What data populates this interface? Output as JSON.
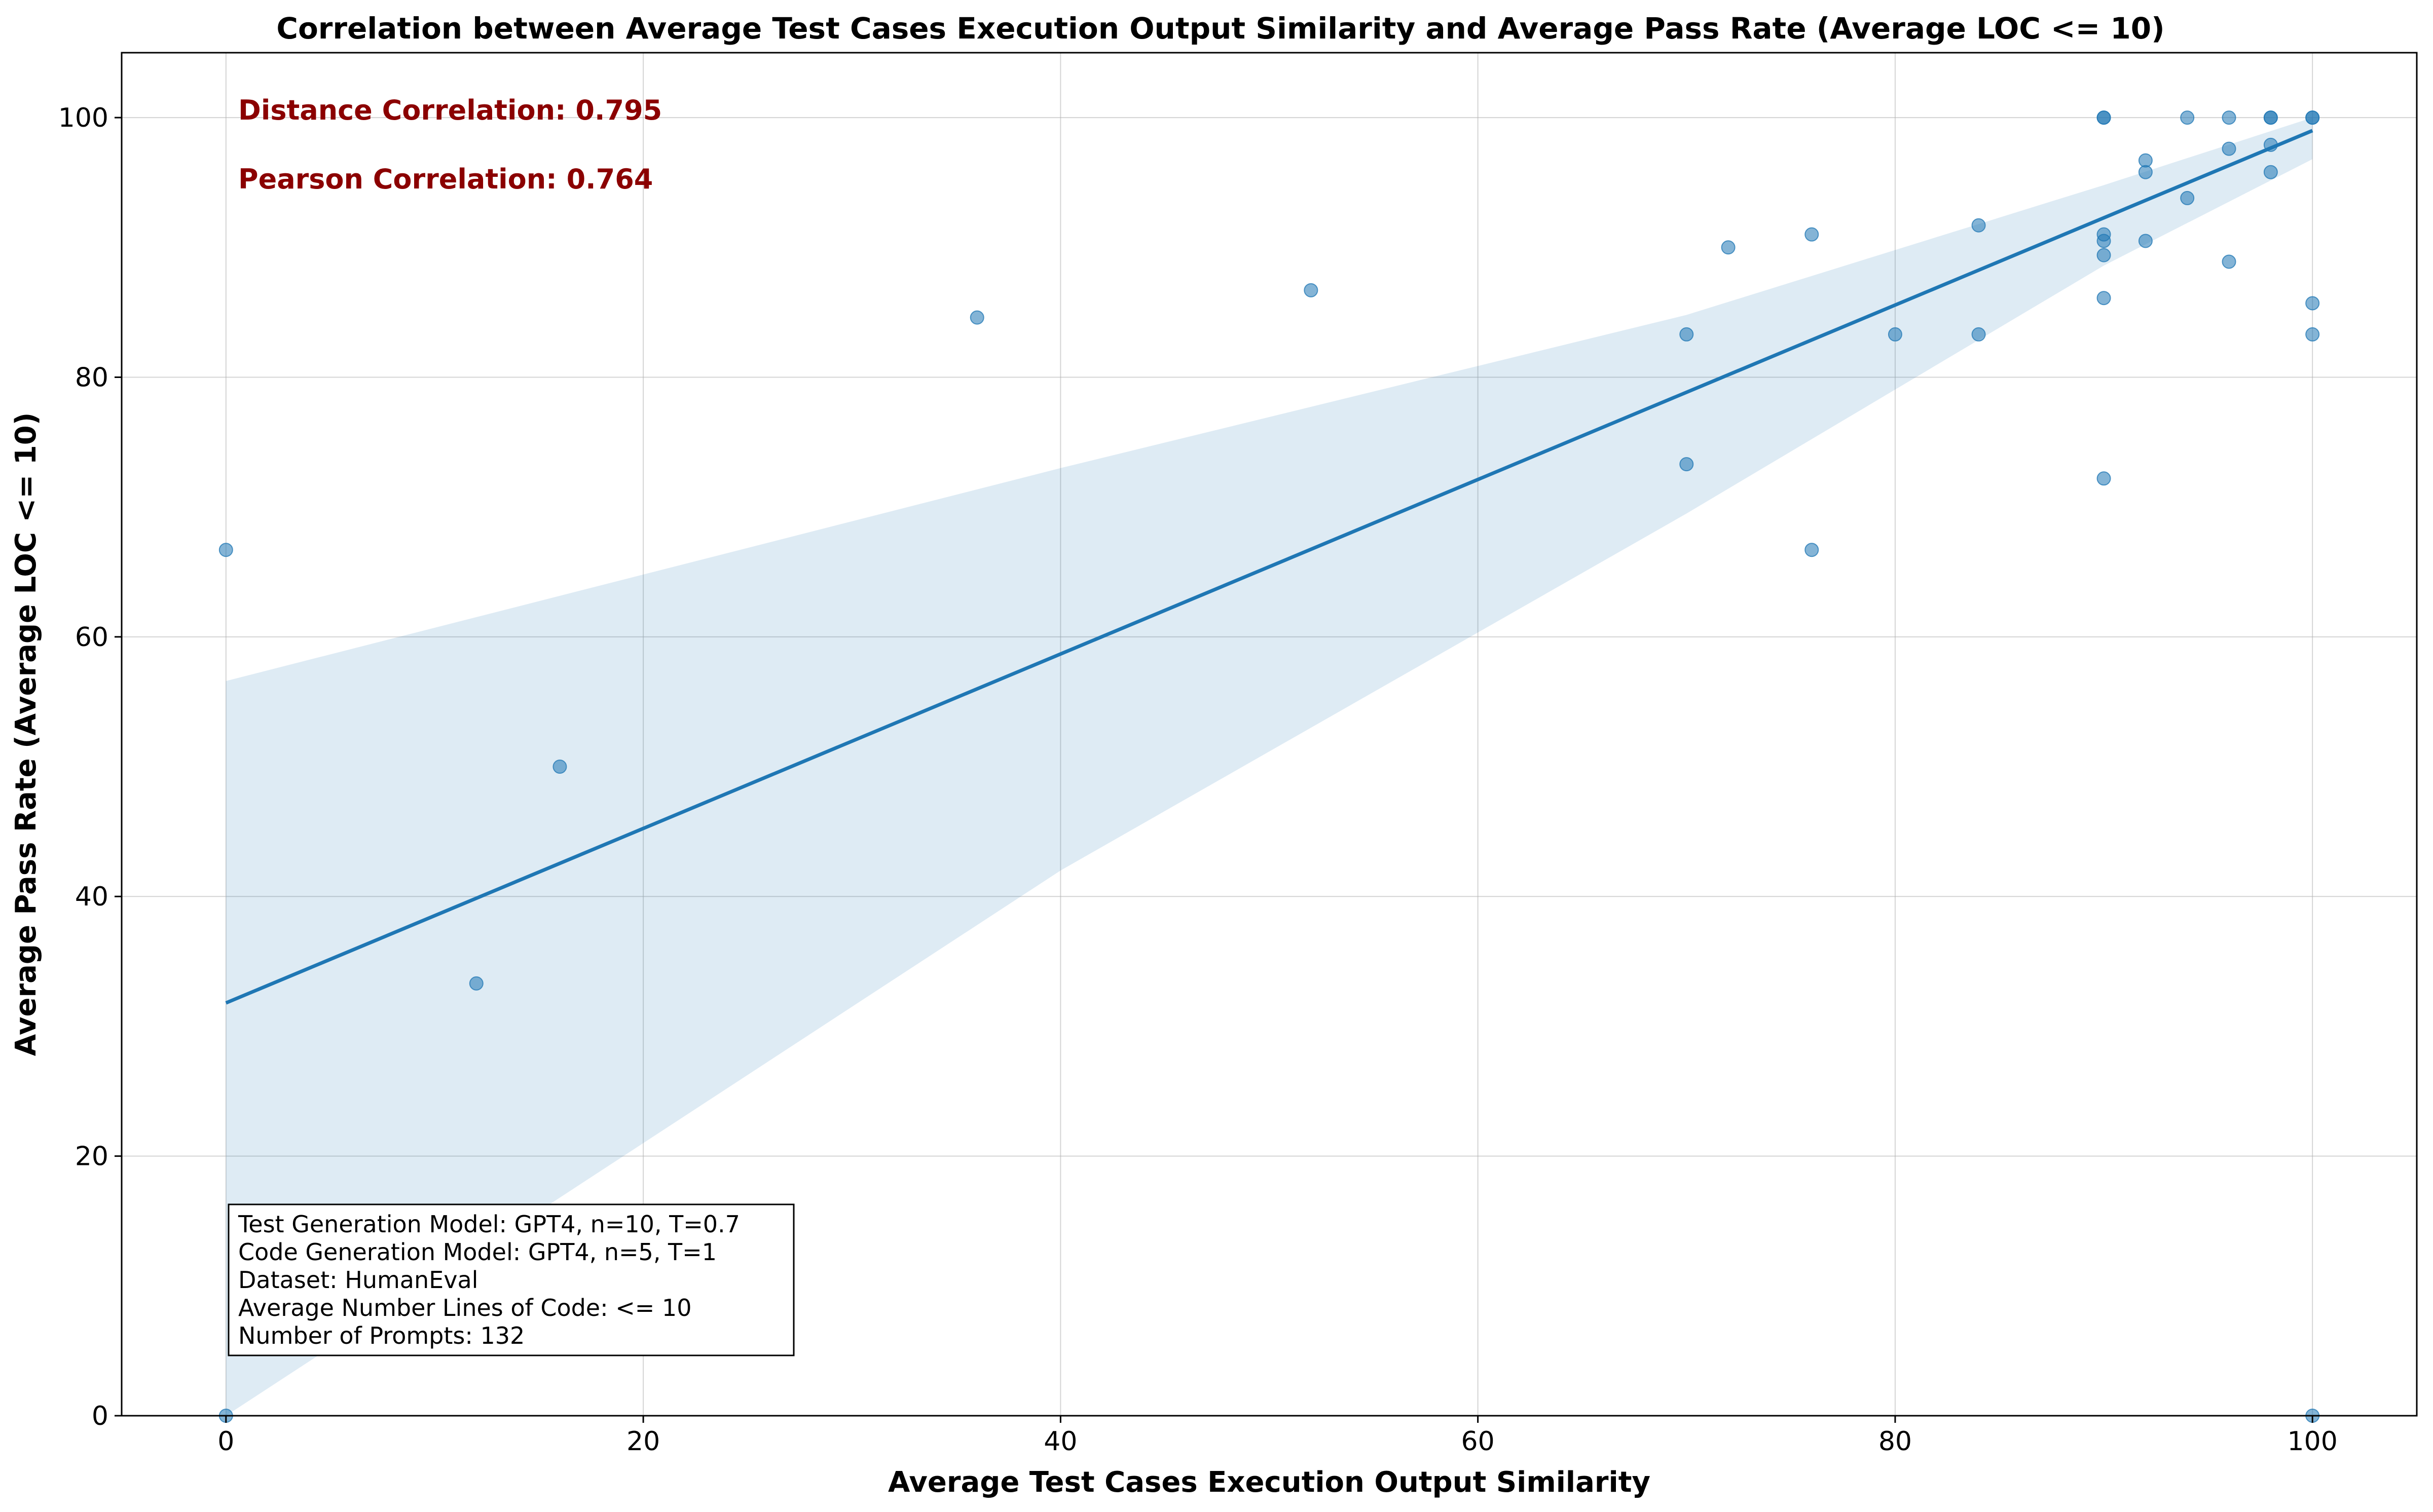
{
  "chart_data": {
    "type": "scatter",
    "title": "Correlation between Average Test Cases Execution Output Similarity and Average Pass Rate (Average LOC <= 10)",
    "xlabel": "Average Test Cases Execution Output Similarity",
    "ylabel": "Average Pass Rate (Average LOC <= 10)",
    "xlim": [
      -5,
      105
    ],
    "ylim": [
      0,
      105
    ],
    "xticks": [
      0,
      20,
      40,
      60,
      80,
      100
    ],
    "yticks": [
      0,
      20,
      40,
      60,
      80,
      100
    ],
    "grid": true,
    "colors": {
      "points": "#1f77b4",
      "line": "#1f77b4",
      "band": "#1f77b4",
      "annotation": "#8b0000"
    },
    "points": [
      [
        0,
        66.7
      ],
      [
        0,
        0
      ],
      [
        12,
        33.3
      ],
      [
        16,
        50
      ],
      [
        36,
        84.6
      ],
      [
        52,
        86.7
      ],
      [
        70,
        83.3
      ],
      [
        70,
        73.3
      ],
      [
        72,
        90
      ],
      [
        76,
        91
      ],
      [
        76,
        66.7
      ],
      [
        80,
        83.3
      ],
      [
        84,
        91.7
      ],
      [
        84,
        83.3
      ],
      [
        90,
        100
      ],
      [
        90,
        100
      ],
      [
        90,
        91
      ],
      [
        90,
        90.5
      ],
      [
        90,
        89.4
      ],
      [
        90,
        86.1
      ],
      [
        90,
        72.2
      ],
      [
        92,
        96.7
      ],
      [
        92,
        95.8
      ],
      [
        92,
        90.5
      ],
      [
        94,
        100
      ],
      [
        94,
        93.8
      ],
      [
        96,
        100
      ],
      [
        96,
        97.6
      ],
      [
        96,
        88.9
      ],
      [
        98,
        100
      ],
      [
        98,
        100
      ],
      [
        98,
        97.9
      ],
      [
        98,
        95.8
      ],
      [
        100,
        100
      ],
      [
        100,
        100
      ],
      [
        100,
        85.7
      ],
      [
        100,
        83.3
      ],
      [
        100,
        0
      ]
    ],
    "regression": {
      "x": [
        0,
        100
      ],
      "y": [
        31.8,
        99
      ]
    },
    "confidence_band": {
      "upper": [
        [
          0,
          56.6
        ],
        [
          40,
          73
        ],
        [
          70,
          84.8
        ],
        [
          90,
          94.8
        ],
        [
          100,
          100
        ]
      ],
      "lower": [
        [
          0,
          0
        ],
        [
          40,
          42
        ],
        [
          70,
          69.5
        ],
        [
          90,
          88.6
        ],
        [
          100,
          96.8
        ]
      ]
    }
  },
  "annotations": {
    "distance_correlation": "Distance Correlation: 0.795",
    "pearson_correlation": "Pearson Correlation: 0.764"
  },
  "info_box": {
    "lines": [
      "Test Generation Model: GPT4, n=10, T=0.7",
      "Code Generation Model: GPT4, n=5, T=1",
      "Dataset: HumanEval",
      "Average Number Lines of Code:  <= 10",
      "Number of Prompts: 132"
    ]
  }
}
